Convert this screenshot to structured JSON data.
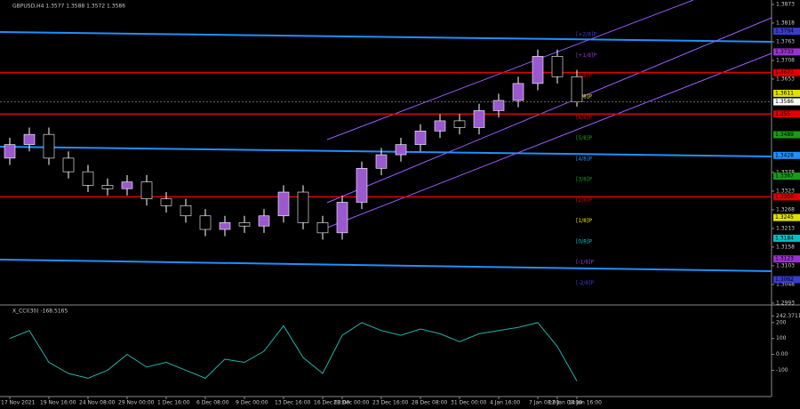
{
  "chart_data": [
    {
      "type": "candlestick",
      "title": "GBPUSD,H4  1.3577 1.3588 1.3572 1.3586",
      "categories": [
        "17 Nov 2021",
        null,
        "19 Nov 16:00",
        null,
        "24 Nov 08:00",
        null,
        "29 Nov 00:00",
        null,
        "1 Dec 16:00",
        null,
        "6 Dec 08:00",
        null,
        "9 Dec 00:00",
        null,
        "13 Dec 16:00",
        null,
        "16 Dec 08:00",
        "21 Dec 00:00",
        null,
        "23 Dec 16:00",
        null,
        "28 Dec 08:00",
        null,
        "31 Dec 00:00",
        null,
        "4 Jan 16:00",
        null,
        "7 Jan 08:00",
        "12 Jan 00:00",
        "14 Jan 16:00"
      ],
      "open": [
        1.342,
        1.346,
        1.349,
        1.342,
        1.338,
        1.334,
        1.333,
        1.335,
        1.33,
        1.328,
        1.325,
        1.321,
        1.323,
        1.322,
        1.325,
        1.332,
        1.323,
        1.32,
        1.329,
        1.339,
        1.343,
        1.346,
        1.35,
        1.353,
        1.351,
        1.356,
        1.359,
        1.364,
        1.372,
        1.366
      ],
      "high": [
        1.348,
        1.351,
        1.351,
        1.344,
        1.34,
        1.336,
        1.337,
        1.337,
        1.332,
        1.33,
        1.327,
        1.325,
        1.325,
        1.327,
        1.334,
        1.334,
        1.325,
        1.331,
        1.341,
        1.345,
        1.348,
        1.352,
        1.355,
        1.355,
        1.358,
        1.361,
        1.366,
        1.374,
        1.374,
        1.368
      ],
      "low": [
        1.34,
        1.344,
        1.34,
        1.336,
        1.332,
        1.331,
        1.331,
        1.328,
        1.326,
        1.323,
        1.319,
        1.319,
        1.32,
        1.32,
        1.323,
        1.321,
        1.318,
        1.318,
        1.327,
        1.337,
        1.341,
        1.344,
        1.348,
        1.349,
        1.349,
        1.354,
        1.357,
        1.362,
        1.364,
        1.3572
      ],
      "close": [
        1.346,
        1.349,
        1.342,
        1.338,
        1.334,
        1.333,
        1.335,
        1.33,
        1.328,
        1.325,
        1.321,
        1.323,
        1.322,
        1.325,
        1.332,
        1.323,
        1.32,
        1.329,
        1.339,
        1.343,
        1.346,
        1.35,
        1.353,
        1.351,
        1.356,
        1.359,
        1.364,
        1.372,
        1.366,
        1.3586
      ],
      "up_color": "#9b59d0",
      "down_color": "#000000",
      "wick_color": "#ffffff",
      "ylim": [
        1.299,
        1.3886
      ],
      "yticks": [
        1.3873,
        1.3818,
        1.3763,
        1.3708,
        1.3653,
        1.3378,
        1.3323,
        1.3268,
        1.3213,
        1.3158,
        1.3103,
        1.3048,
        1.2993
      ],
      "levels": [
        {
          "label": "[+2/8]P",
          "value": 1.3794,
          "color": "#3a3ad0"
        },
        {
          "label": "[+1/8]P",
          "value": 1.3733,
          "color": "#9932cc"
        },
        {
          "label": "[8/8]P",
          "value": 1.3672,
          "color": "#e00000"
        },
        {
          "label": "[7/8]P",
          "value": 1.3611,
          "color": "#e0e000"
        },
        {
          "label": "[6/8]P",
          "value": 1.355,
          "color": "#e00000"
        },
        {
          "label": "[5/8]P",
          "value": 1.3489,
          "color": "#1a9a1a"
        },
        {
          "label": "[4/8]P",
          "value": 1.3428,
          "color": "#1e90ff"
        },
        {
          "label": "[3/8]P",
          "value": 1.3367,
          "color": "#1a9a1a"
        },
        {
          "label": "[2/8]P",
          "value": 1.3306,
          "color": "#e00000"
        },
        {
          "label": "[1/8]P",
          "value": 1.3245,
          "color": "#e0e000"
        },
        {
          "label": "[0/8]P",
          "value": 1.3184,
          "color": "#00c0c0"
        },
        {
          "label": "[-1/8]P",
          "value": 1.3123,
          "color": "#9932cc"
        },
        {
          "label": "[-2/8]P",
          "value": 1.3062,
          "color": "#3a3ad0"
        }
      ],
      "last_price": 1.3586
    },
    {
      "type": "line",
      "title": "X_CCI(30) -168.5165",
      "values": [
        100,
        150,
        -50,
        -120,
        -150,
        -100,
        0,
        -80,
        -50,
        -100,
        -150,
        -30,
        -50,
        20,
        180,
        -20,
        -120,
        120,
        200,
        150,
        120,
        160,
        130,
        80,
        130,
        150,
        170,
        200,
        50,
        -168.5165
      ],
      "color": "#20b2aa",
      "ylim": [
        -260,
        300
      ],
      "yticks": [
        242.3711,
        200,
        100,
        {
          "value": 0,
          "label": "0.00"
        },
        -100
      ]
    }
  ]
}
